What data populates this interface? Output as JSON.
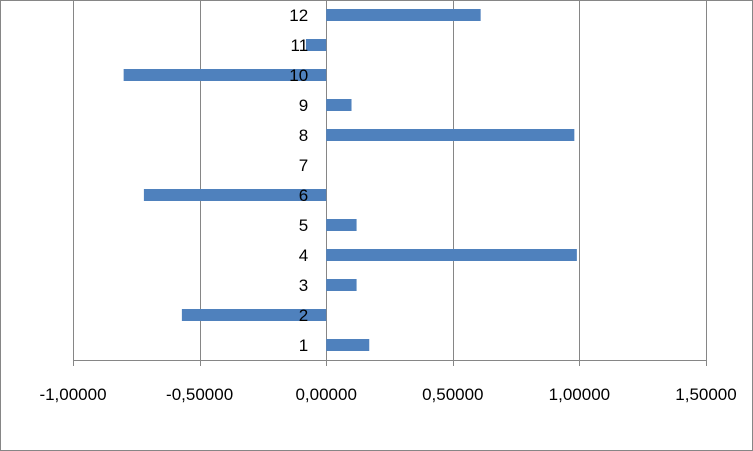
{
  "chart_data": {
    "type": "bar",
    "orientation": "horizontal",
    "categories": [
      "1",
      "2",
      "3",
      "4",
      "5",
      "6",
      "7",
      "8",
      "9",
      "10",
      "11",
      "12"
    ],
    "values": [
      0.17,
      -0.57,
      0.12,
      0.99,
      0.12,
      -0.72,
      0.0,
      0.98,
      0.1,
      -0.8,
      -0.08,
      0.61
    ],
    "x_tick_labels": [
      "-1,00000",
      "-0,50000",
      "0,00000",
      "0,50000",
      "1,00000",
      "1,50000"
    ],
    "xlim": [
      -1.0,
      1.5
    ],
    "x_ticks": [
      -1.0,
      -0.5,
      0.0,
      0.5,
      1.0,
      1.5
    ],
    "title": "",
    "xlabel": "",
    "ylabel": "",
    "grid": "vertical major gridlines",
    "legend": "none",
    "bar_color": "#4F81BD",
    "grid_color": "#868686"
  }
}
